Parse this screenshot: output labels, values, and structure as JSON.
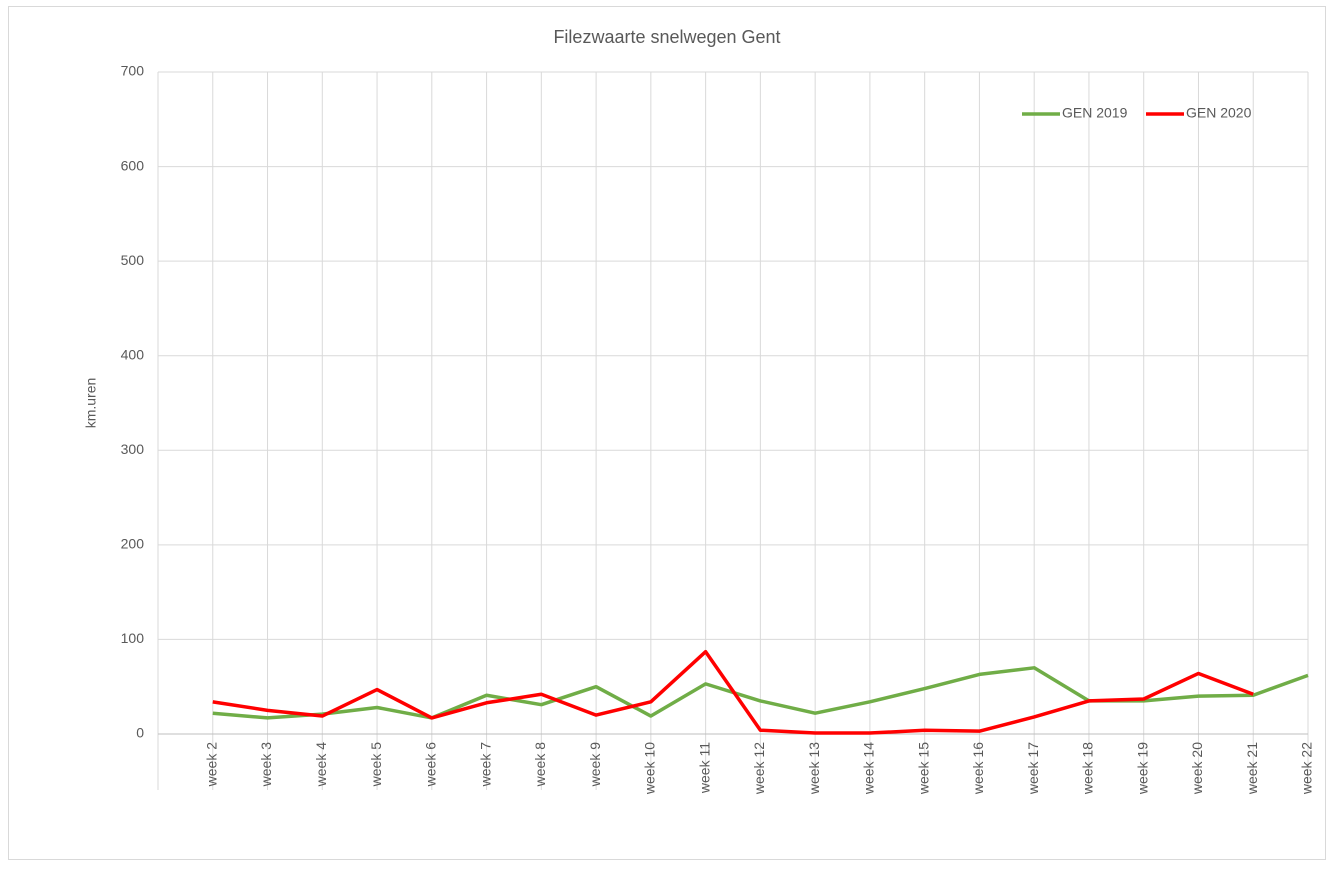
{
  "chart_data": {
    "type": "line",
    "title": "Filezwaarte snelwegen Gent",
    "y_label": "km.uren",
    "categories": [
      null,
      "week 2",
      "week 3",
      "week 4",
      "week 5",
      "week 6",
      "week 7",
      "week 8",
      "week 9",
      "week 10",
      "week 11",
      "week 12",
      "week 13",
      "week 14",
      "week 15",
      "week 16",
      "week 17",
      "week 18",
      "week 19",
      "week 20",
      "week 21",
      "week 22"
    ],
    "series": [
      {
        "name": "GEN 2019",
        "color": "#70ad47",
        "values": [
          null,
          22,
          17,
          21,
          28,
          17,
          41,
          31,
          50,
          19,
          53,
          35,
          22,
          34,
          48,
          63,
          70,
          35,
          35,
          40,
          41,
          62
        ]
      },
      {
        "name": "GEN 2020",
        "color": "#ff0000",
        "values": [
          null,
          34,
          25,
          19,
          47,
          17,
          33,
          42,
          20,
          34,
          87,
          4,
          1,
          1,
          4,
          3,
          18,
          35,
          37,
          64,
          42,
          null
        ]
      }
    ],
    "ylim": [
      0,
      700
    ],
    "yticks": [
      0,
      100,
      200,
      300,
      400,
      500,
      600,
      700
    ],
    "grid": true,
    "legend": "top-right"
  }
}
